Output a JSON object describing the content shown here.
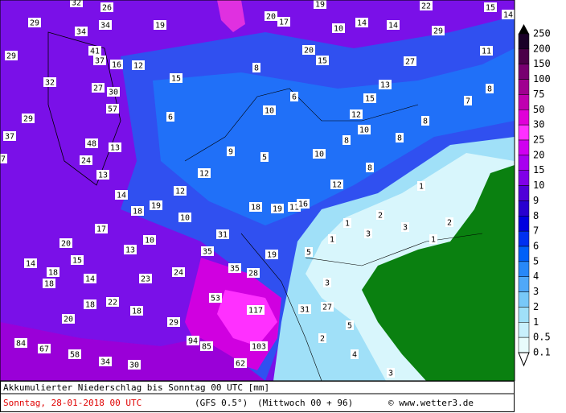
{
  "map": {
    "labels": [
      "32",
      "26",
      "19",
      "20",
      "17",
      "19",
      "22",
      "15",
      "14",
      "29",
      "34",
      "34",
      "10",
      "14",
      "14",
      "29",
      "29",
      "41",
      "37",
      "16",
      "12",
      "20",
      "15",
      "27",
      "11",
      "8",
      "15",
      "32",
      "27",
      "30",
      "13",
      "8",
      "6",
      "57",
      "10",
      "15",
      "7",
      "29",
      "6",
      "12",
      "8",
      "10",
      "37",
      "48",
      "13",
      "9",
      "8",
      "8",
      "24",
      "7",
      "5",
      "10",
      "8",
      "13",
      "12",
      "12",
      "12",
      "1",
      "14",
      "18",
      "19",
      "10",
      "18",
      "19",
      "11",
      "16",
      "1",
      "2",
      "2",
      "17",
      "31",
      "3",
      "3",
      "1",
      "1",
      "20",
      "10",
      "13",
      "35",
      "14",
      "15",
      "19",
      "5",
      "35",
      "28",
      "18",
      "18",
      "14",
      "23",
      "24",
      "3",
      "53",
      "22",
      "18",
      "18",
      "117",
      "31",
      "27",
      "29",
      "20",
      "5",
      "94",
      "85",
      "103",
      "84",
      "67",
      "58",
      "34",
      "30",
      "62",
      "4",
      "3",
      "2"
    ]
  },
  "legend": {
    "labels": [
      "250",
      "200",
      "150",
      "100",
      "75",
      "50",
      "30",
      "25",
      "20",
      "15",
      "10",
      "9",
      "8",
      "7",
      "6",
      "5",
      "4",
      "3",
      "2",
      "1",
      "0.5",
      "0.1"
    ]
  },
  "caption": {
    "title": "Akkumulierter Niederschlag bis Sonntag 00 UTC [mm]",
    "date": "Sonntag, 28-01-2018  00 UTC",
    "model": "(GFS 0.5°)",
    "run": "(Mittwoch 00 + 96)",
    "credit": "© www.wetter3.de"
  }
}
